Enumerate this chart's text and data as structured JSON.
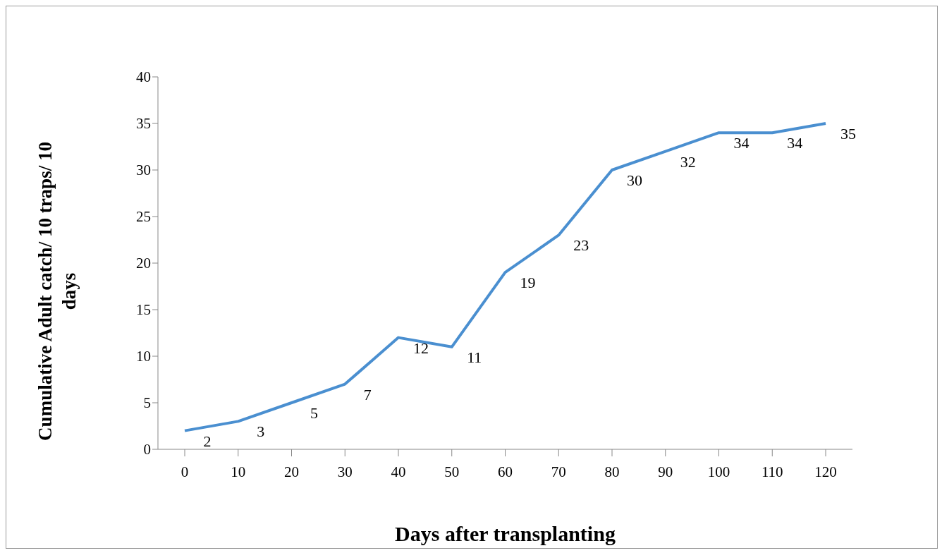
{
  "chart_data": {
    "type": "line",
    "xlabel": "Days after transplanting",
    "ylabel": "Cumulative Adult catch/ 10 traps/ 10 days",
    "categories": [
      "0",
      "10",
      "20",
      "30",
      "40",
      "50",
      "60",
      "70",
      "80",
      "90",
      "100",
      "110",
      "120"
    ],
    "series": [
      {
        "color": "#4a8fd0",
        "values": [
          2,
          3,
          5,
          7,
          12,
          11,
          19,
          23,
          30,
          32,
          34,
          34,
          35
        ]
      }
    ],
    "ylim": [
      0,
      40
    ],
    "yticks": [
      0,
      5,
      10,
      15,
      20,
      25,
      30,
      35,
      40
    ],
    "data_labels": true
  }
}
